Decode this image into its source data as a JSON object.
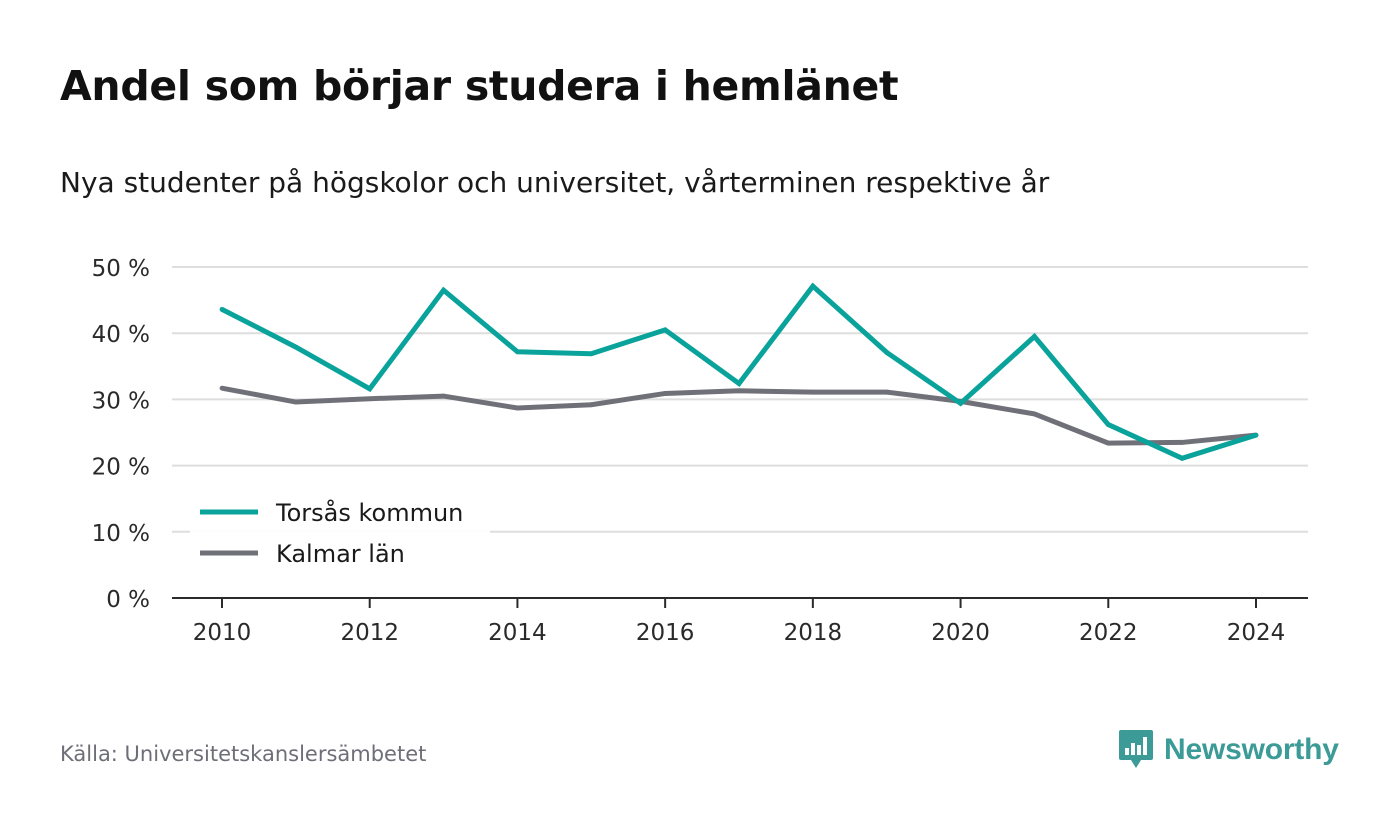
{
  "title": "Andel som börjar studera i hemlänet",
  "subtitle": "Nya studenter på högskolor och universitet, vårterminen respektive år",
  "source": "Källa: Universitetskanslersämbetet",
  "brand": {
    "name": "Newsworthy",
    "icon": "newsworthy-logo-icon",
    "color": "#3c9b96"
  },
  "chart_data": {
    "type": "line",
    "x": [
      2010,
      2011,
      2012,
      2013,
      2014,
      2015,
      2016,
      2017,
      2018,
      2019,
      2020,
      2021,
      2022,
      2023,
      2024
    ],
    "series": [
      {
        "name": "Torsås kommun",
        "color": "#0aa39b",
        "values": [
          43.6,
          37.9,
          31.6,
          46.5,
          37.2,
          36.9,
          40.5,
          32.4,
          47.1,
          37.1,
          29.4,
          39.5,
          26.2,
          21.1,
          24.6
        ]
      },
      {
        "name": "Kalmar län",
        "color": "#707079",
        "values": [
          31.7,
          29.6,
          30.1,
          30.5,
          28.7,
          29.2,
          30.9,
          31.3,
          31.1,
          31.1,
          29.7,
          27.8,
          23.4,
          23.5,
          24.6
        ]
      }
    ],
    "xticks": [
      "2010",
      "2012",
      "2014",
      "2016",
      "2018",
      "2020",
      "2022",
      "2024"
    ],
    "yticks": [
      "0 %",
      "10 %",
      "20 %",
      "30 %",
      "40 %",
      "50 %"
    ],
    "xlim": [
      2010,
      2024
    ],
    "ylim": [
      0,
      50
    ],
    "xlabel": "",
    "ylabel": "",
    "grid": true,
    "legend": "bottom-left"
  }
}
